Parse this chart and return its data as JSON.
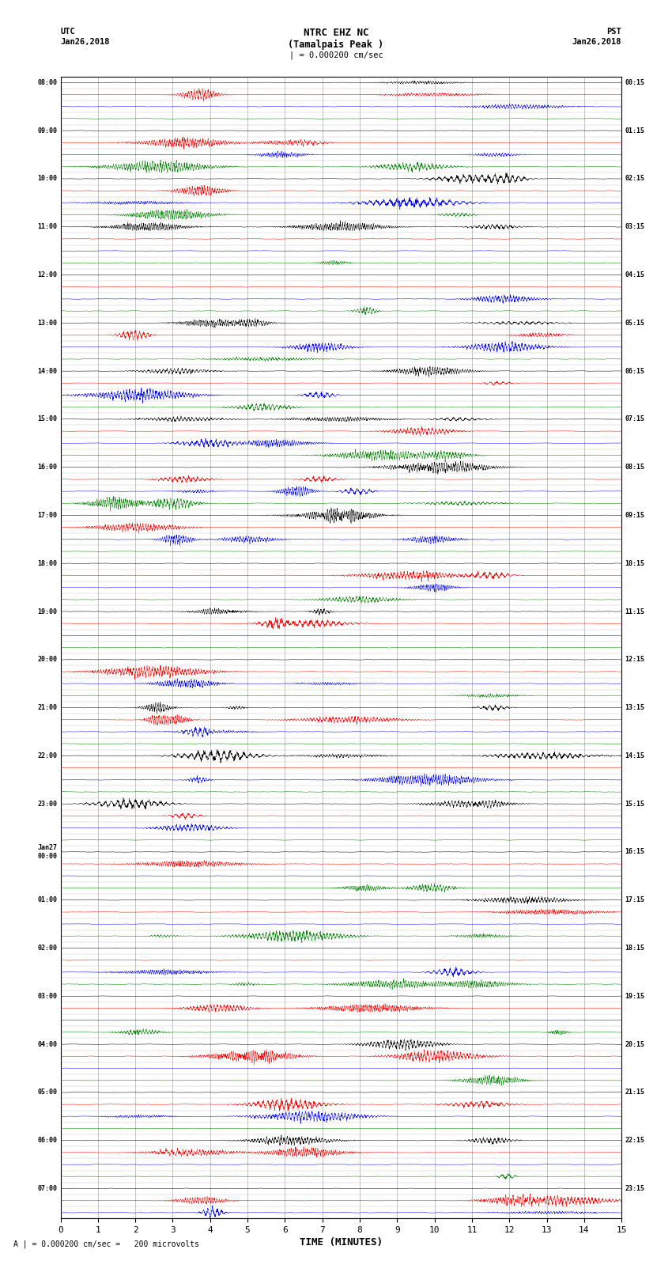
{
  "title_line1": "NTRC EHZ NC",
  "title_line2": "(Tamalpais Peak )",
  "scale_label": "| = 0.000200 cm/sec",
  "footer_label": "A | = 0.000200 cm/sec =   200 microvolts",
  "utc_label": "UTC",
  "utc_date": "Jan26,2018",
  "pst_label": "PST",
  "pst_date": "Jan26,2018",
  "xlabel": "TIME (MINUTES)",
  "xlim": [
    0,
    15
  ],
  "xticks": [
    0,
    1,
    2,
    3,
    4,
    5,
    6,
    7,
    8,
    9,
    10,
    11,
    12,
    13,
    14,
    15
  ],
  "row_colors": [
    "black",
    "red",
    "blue",
    "green"
  ],
  "fig_width": 8.5,
  "fig_height": 16.13,
  "left_times_utc": [
    "08:00",
    "",
    "",
    "",
    "09:00",
    "",
    "",
    "",
    "10:00",
    "",
    "",
    "",
    "11:00",
    "",
    "",
    "",
    "12:00",
    "",
    "",
    "",
    "13:00",
    "",
    "",
    "",
    "14:00",
    "",
    "",
    "",
    "15:00",
    "",
    "",
    "",
    "16:00",
    "",
    "",
    "",
    "17:00",
    "",
    "",
    "",
    "18:00",
    "",
    "",
    "",
    "19:00",
    "",
    "",
    "",
    "20:00",
    "",
    "",
    "",
    "21:00",
    "",
    "",
    "",
    "22:00",
    "",
    "",
    "",
    "23:00",
    "",
    "",
    "",
    "Jan27\n00:00",
    "",
    "",
    "",
    "01:00",
    "",
    "",
    "",
    "02:00",
    "",
    "",
    "",
    "03:00",
    "",
    "",
    "",
    "04:00",
    "",
    "",
    "",
    "05:00",
    "",
    "",
    "",
    "06:00",
    "",
    "",
    "",
    "07:00",
    "",
    ""
  ],
  "right_times_pst": [
    "00:15",
    "",
    "",
    "",
    "01:15",
    "",
    "",
    "",
    "02:15",
    "",
    "",
    "",
    "03:15",
    "",
    "",
    "",
    "04:15",
    "",
    "",
    "",
    "05:15",
    "",
    "",
    "",
    "06:15",
    "",
    "",
    "",
    "07:15",
    "",
    "",
    "",
    "08:15",
    "",
    "",
    "",
    "09:15",
    "",
    "",
    "",
    "10:15",
    "",
    "",
    "",
    "11:15",
    "",
    "",
    "",
    "12:15",
    "",
    "",
    "",
    "13:15",
    "",
    "",
    "",
    "14:15",
    "",
    "",
    "",
    "15:15",
    "",
    "",
    "",
    "16:15",
    "",
    "",
    "",
    "17:15",
    "",
    "",
    "",
    "18:15",
    "",
    "",
    "",
    "19:15",
    "",
    "",
    "",
    "20:15",
    "",
    "",
    "",
    "21:15",
    "",
    "",
    "",
    "22:15",
    "",
    "",
    "",
    "23:15",
    "",
    ""
  ],
  "background_color": "white",
  "grid_color": "#888888",
  "text_color": "black",
  "vgrid_minutes": [
    0,
    1,
    2,
    3,
    4,
    5,
    6,
    7,
    8,
    9,
    10,
    11,
    12,
    13,
    14,
    15
  ]
}
